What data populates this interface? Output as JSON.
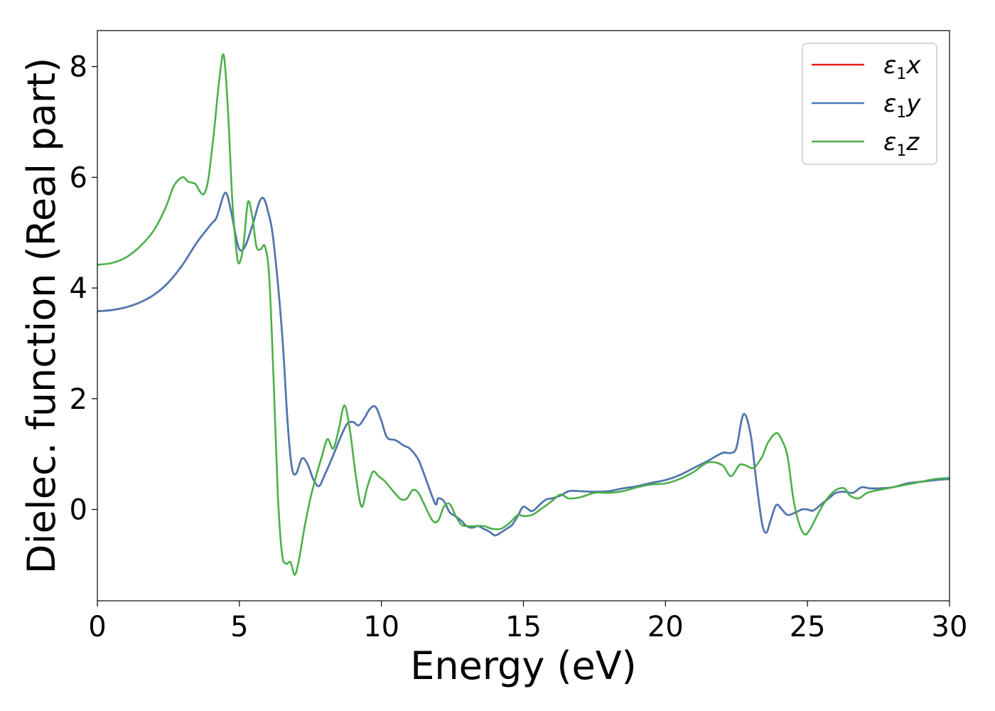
{
  "chart_data": {
    "type": "line",
    "xlabel": "Energy (eV)",
    "ylabel": "Dielec. function (Real part)",
    "xlim": [
      0,
      30
    ],
    "ylim": [
      -1.65,
      8.65
    ],
    "xticks": [
      0,
      5,
      10,
      15,
      20,
      25,
      30
    ],
    "yticks": [
      0,
      2,
      4,
      6,
      8
    ],
    "grid": false,
    "legend_position": "top-right",
    "series": [
      {
        "name": "ε1x",
        "label_main": "ε",
        "label_sub": "1",
        "label_tail": "x",
        "color": "#e41a1c",
        "x": [
          0,
          0.5,
          1,
          1.5,
          2,
          2.5,
          3,
          3.5,
          4,
          4.2,
          4.5,
          4.7,
          4.85,
          5.0,
          5.2,
          5.5,
          5.7,
          5.85,
          6.0,
          6.2,
          6.5,
          6.7,
          6.85,
          7.0,
          7.2,
          7.4,
          7.6,
          7.8,
          8.0,
          8.2,
          8.4,
          8.6,
          8.8,
          9.0,
          9.2,
          9.4,
          9.6,
          9.8,
          10.0,
          10.2,
          10.5,
          10.8,
          11.0,
          11.3,
          11.6,
          11.9,
          12.0,
          12.2,
          12.4,
          12.6,
          12.8,
          13.0,
          13.2,
          13.4,
          13.6,
          13.8,
          14.0,
          14.2,
          14.4,
          14.6,
          14.8,
          15.0,
          15.3,
          15.6,
          15.8,
          16.0,
          16.3,
          16.6,
          17.0,
          17.5,
          18.0,
          18.5,
          19.0,
          19.5,
          20.0,
          20.5,
          21.0,
          21.5,
          22.0,
          22.3,
          22.5,
          22.75,
          23.0,
          23.2,
          23.4,
          23.55,
          23.7,
          23.9,
          24.1,
          24.3,
          24.6,
          24.8,
          25.0,
          25.2,
          25.5,
          25.8,
          26.0,
          26.3,
          26.6,
          26.9,
          27.2,
          27.5,
          28.0,
          28.5,
          29.0,
          29.5,
          30.0
        ],
        "y": [
          3.58,
          3.6,
          3.65,
          3.74,
          3.88,
          4.1,
          4.42,
          4.82,
          5.15,
          5.28,
          5.72,
          5.4,
          5.0,
          4.7,
          4.75,
          5.2,
          5.55,
          5.62,
          5.4,
          4.85,
          3.2,
          1.55,
          0.75,
          0.65,
          0.92,
          0.82,
          0.55,
          0.42,
          0.62,
          0.85,
          1.1,
          1.35,
          1.55,
          1.58,
          1.52,
          1.65,
          1.82,
          1.85,
          1.6,
          1.3,
          1.25,
          1.15,
          1.1,
          0.9,
          0.5,
          0.1,
          0.2,
          0.15,
          -0.05,
          -0.12,
          -0.2,
          -0.3,
          -0.33,
          -0.3,
          -0.35,
          -0.4,
          -0.47,
          -0.42,
          -0.35,
          -0.28,
          -0.12,
          0.05,
          -0.03,
          0.1,
          0.18,
          0.2,
          0.25,
          0.33,
          0.33,
          0.32,
          0.33,
          0.38,
          0.42,
          0.48,
          0.53,
          0.62,
          0.75,
          0.88,
          1.02,
          1.02,
          1.12,
          1.72,
          1.35,
          0.5,
          -0.25,
          -0.42,
          -0.2,
          0.08,
          0.0,
          -0.1,
          -0.05,
          0.0,
          0.0,
          -0.02,
          0.1,
          0.22,
          0.3,
          0.32,
          0.3,
          0.4,
          0.38,
          0.38,
          0.4,
          0.47,
          0.5,
          0.53,
          0.55
        ]
      },
      {
        "name": "ε1y",
        "label_main": "ε",
        "label_sub": "1",
        "label_tail": "y",
        "color": "#4a7ab5",
        "x": [
          0,
          0.5,
          1,
          1.5,
          2,
          2.5,
          3,
          3.5,
          4,
          4.2,
          4.5,
          4.7,
          4.85,
          5.0,
          5.2,
          5.5,
          5.7,
          5.85,
          6.0,
          6.2,
          6.5,
          6.7,
          6.85,
          7.0,
          7.2,
          7.4,
          7.6,
          7.8,
          8.0,
          8.2,
          8.4,
          8.6,
          8.8,
          9.0,
          9.2,
          9.4,
          9.6,
          9.8,
          10.0,
          10.2,
          10.5,
          10.8,
          11.0,
          11.3,
          11.6,
          11.9,
          12.0,
          12.2,
          12.4,
          12.6,
          12.8,
          13.0,
          13.2,
          13.4,
          13.6,
          13.8,
          14.0,
          14.2,
          14.4,
          14.6,
          14.8,
          15.0,
          15.3,
          15.6,
          15.8,
          16.0,
          16.3,
          16.6,
          17.0,
          17.5,
          18.0,
          18.5,
          19.0,
          19.5,
          20.0,
          20.5,
          21.0,
          21.5,
          22.0,
          22.3,
          22.5,
          22.75,
          23.0,
          23.2,
          23.4,
          23.55,
          23.7,
          23.9,
          24.1,
          24.3,
          24.6,
          24.8,
          25.0,
          25.2,
          25.5,
          25.8,
          26.0,
          26.3,
          26.6,
          26.9,
          27.2,
          27.5,
          28.0,
          28.5,
          29.0,
          29.5,
          30.0
        ],
        "y": [
          3.58,
          3.6,
          3.65,
          3.74,
          3.88,
          4.1,
          4.42,
          4.82,
          5.15,
          5.28,
          5.72,
          5.4,
          5.0,
          4.7,
          4.75,
          5.2,
          5.55,
          5.62,
          5.4,
          4.85,
          3.2,
          1.55,
          0.75,
          0.65,
          0.92,
          0.82,
          0.55,
          0.42,
          0.62,
          0.85,
          1.1,
          1.35,
          1.55,
          1.58,
          1.52,
          1.65,
          1.82,
          1.85,
          1.6,
          1.3,
          1.25,
          1.15,
          1.1,
          0.9,
          0.5,
          0.1,
          0.2,
          0.15,
          -0.05,
          -0.12,
          -0.2,
          -0.3,
          -0.33,
          -0.3,
          -0.35,
          -0.4,
          -0.47,
          -0.42,
          -0.35,
          -0.28,
          -0.12,
          0.05,
          -0.03,
          0.1,
          0.18,
          0.2,
          0.25,
          0.33,
          0.33,
          0.32,
          0.33,
          0.38,
          0.42,
          0.48,
          0.53,
          0.62,
          0.75,
          0.88,
          1.02,
          1.02,
          1.12,
          1.72,
          1.35,
          0.5,
          -0.25,
          -0.42,
          -0.2,
          0.08,
          0.0,
          -0.1,
          -0.05,
          0.0,
          0.0,
          -0.02,
          0.1,
          0.22,
          0.3,
          0.32,
          0.3,
          0.4,
          0.38,
          0.38,
          0.4,
          0.47,
          0.5,
          0.53,
          0.55
        ]
      },
      {
        "name": "ε1z",
        "label_main": "ε",
        "label_sub": "1",
        "label_tail": "z",
        "color": "#4daf4a",
        "x": [
          0,
          0.5,
          1,
          1.5,
          2,
          2.4,
          2.7,
          3.0,
          3.2,
          3.45,
          3.6,
          3.75,
          3.9,
          4.1,
          4.3,
          4.45,
          4.6,
          4.75,
          4.9,
          5.0,
          5.15,
          5.3,
          5.45,
          5.6,
          5.75,
          5.9,
          6.05,
          6.2,
          6.35,
          6.5,
          6.65,
          6.8,
          6.95,
          7.1,
          7.3,
          7.5,
          7.7,
          7.9,
          8.1,
          8.3,
          8.5,
          8.7,
          8.9,
          9.1,
          9.3,
          9.5,
          9.7,
          9.9,
          10.1,
          10.3,
          10.5,
          10.7,
          10.9,
          11.1,
          11.3,
          11.5,
          11.8,
          12.0,
          12.2,
          12.4,
          12.6,
          12.8,
          13.0,
          13.3,
          13.6,
          13.9,
          14.2,
          14.5,
          14.8,
          15.0,
          15.3,
          15.6,
          16.0,
          16.3,
          16.6,
          17.0,
          17.5,
          18.0,
          18.5,
          19.0,
          19.5,
          20.0,
          20.5,
          21.0,
          21.5,
          22.0,
          22.3,
          22.6,
          22.8,
          23.1,
          23.4,
          23.6,
          23.9,
          24.1,
          24.3,
          24.5,
          24.7,
          24.9,
          25.1,
          25.4,
          25.7,
          26.0,
          26.3,
          26.5,
          26.8,
          27.1,
          27.5,
          28.0,
          28.5,
          29.0,
          29.5,
          30.0
        ],
        "y": [
          4.42,
          4.45,
          4.55,
          4.75,
          5.05,
          5.45,
          5.85,
          6.0,
          5.92,
          5.88,
          5.75,
          5.7,
          5.95,
          6.8,
          7.8,
          8.2,
          7.2,
          5.6,
          4.65,
          4.45,
          4.8,
          5.55,
          5.3,
          4.75,
          4.7,
          4.75,
          4.2,
          2.4,
          0.3,
          -0.8,
          -0.98,
          -0.95,
          -1.18,
          -0.9,
          -0.3,
          0.2,
          0.6,
          0.95,
          1.27,
          1.1,
          1.45,
          1.88,
          1.4,
          0.6,
          0.05,
          0.4,
          0.68,
          0.6,
          0.52,
          0.4,
          0.28,
          0.18,
          0.2,
          0.35,
          0.3,
          0.1,
          -0.2,
          -0.2,
          0.05,
          0.1,
          -0.1,
          -0.27,
          -0.3,
          -0.3,
          -0.3,
          -0.35,
          -0.35,
          -0.25,
          -0.1,
          -0.12,
          -0.1,
          0.0,
          0.15,
          0.27,
          0.2,
          0.22,
          0.3,
          0.3,
          0.33,
          0.4,
          0.45,
          0.47,
          0.55,
          0.68,
          0.85,
          0.8,
          0.6,
          0.8,
          0.8,
          0.75,
          0.95,
          1.2,
          1.38,
          1.25,
          0.95,
          0.2,
          -0.25,
          -0.45,
          -0.35,
          -0.05,
          0.2,
          0.35,
          0.38,
          0.25,
          0.2,
          0.3,
          0.35,
          0.4,
          0.45,
          0.5,
          0.55,
          0.57
        ]
      }
    ]
  }
}
